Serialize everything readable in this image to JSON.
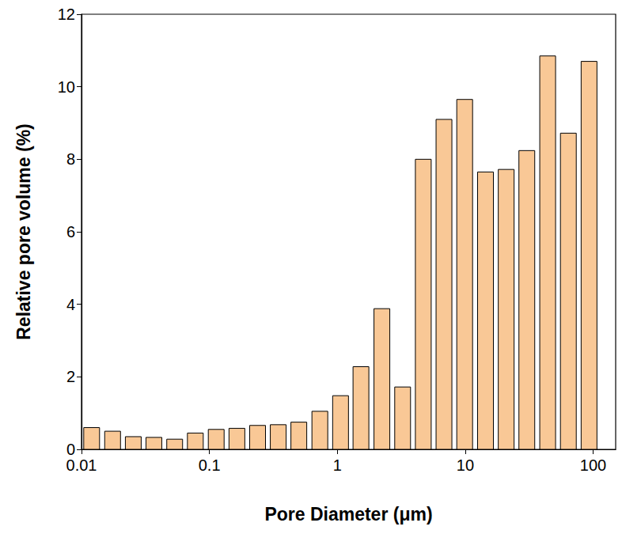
{
  "chart_data": {
    "type": "bar",
    "x_label": "Pore Diameter (μm)",
    "y_label": "Relative pore volume (%)",
    "x": [
      0.012,
      0.0175,
      0.0254,
      0.0368,
      0.0535,
      0.0776,
      0.113,
      0.164,
      0.238,
      0.345,
      0.5,
      0.73,
      1.06,
      1.53,
      2.23,
      3.24,
      4.7,
      6.82,
      9.9,
      14.4,
      20.9,
      30.3,
      44.1,
      64.0,
      92.9
    ],
    "values": [
      0.6,
      0.5,
      0.35,
      0.33,
      0.28,
      0.45,
      0.55,
      0.58,
      0.66,
      0.68,
      0.75,
      1.05,
      1.48,
      2.28,
      3.88,
      1.72,
      8.0,
      9.1,
      9.65,
      7.65,
      7.72,
      8.24,
      10.85,
      8.72,
      10.7
    ],
    "color": "#f9c896",
    "log": "x",
    "xlim": [
      0.01,
      150
    ],
    "xticks": [
      0.01,
      0.1,
      1,
      10,
      100
    ],
    "ylim": [
      0,
      12
    ],
    "yticks": [
      0,
      2,
      4,
      6,
      8,
      10,
      12
    ],
    "grid": false
  }
}
